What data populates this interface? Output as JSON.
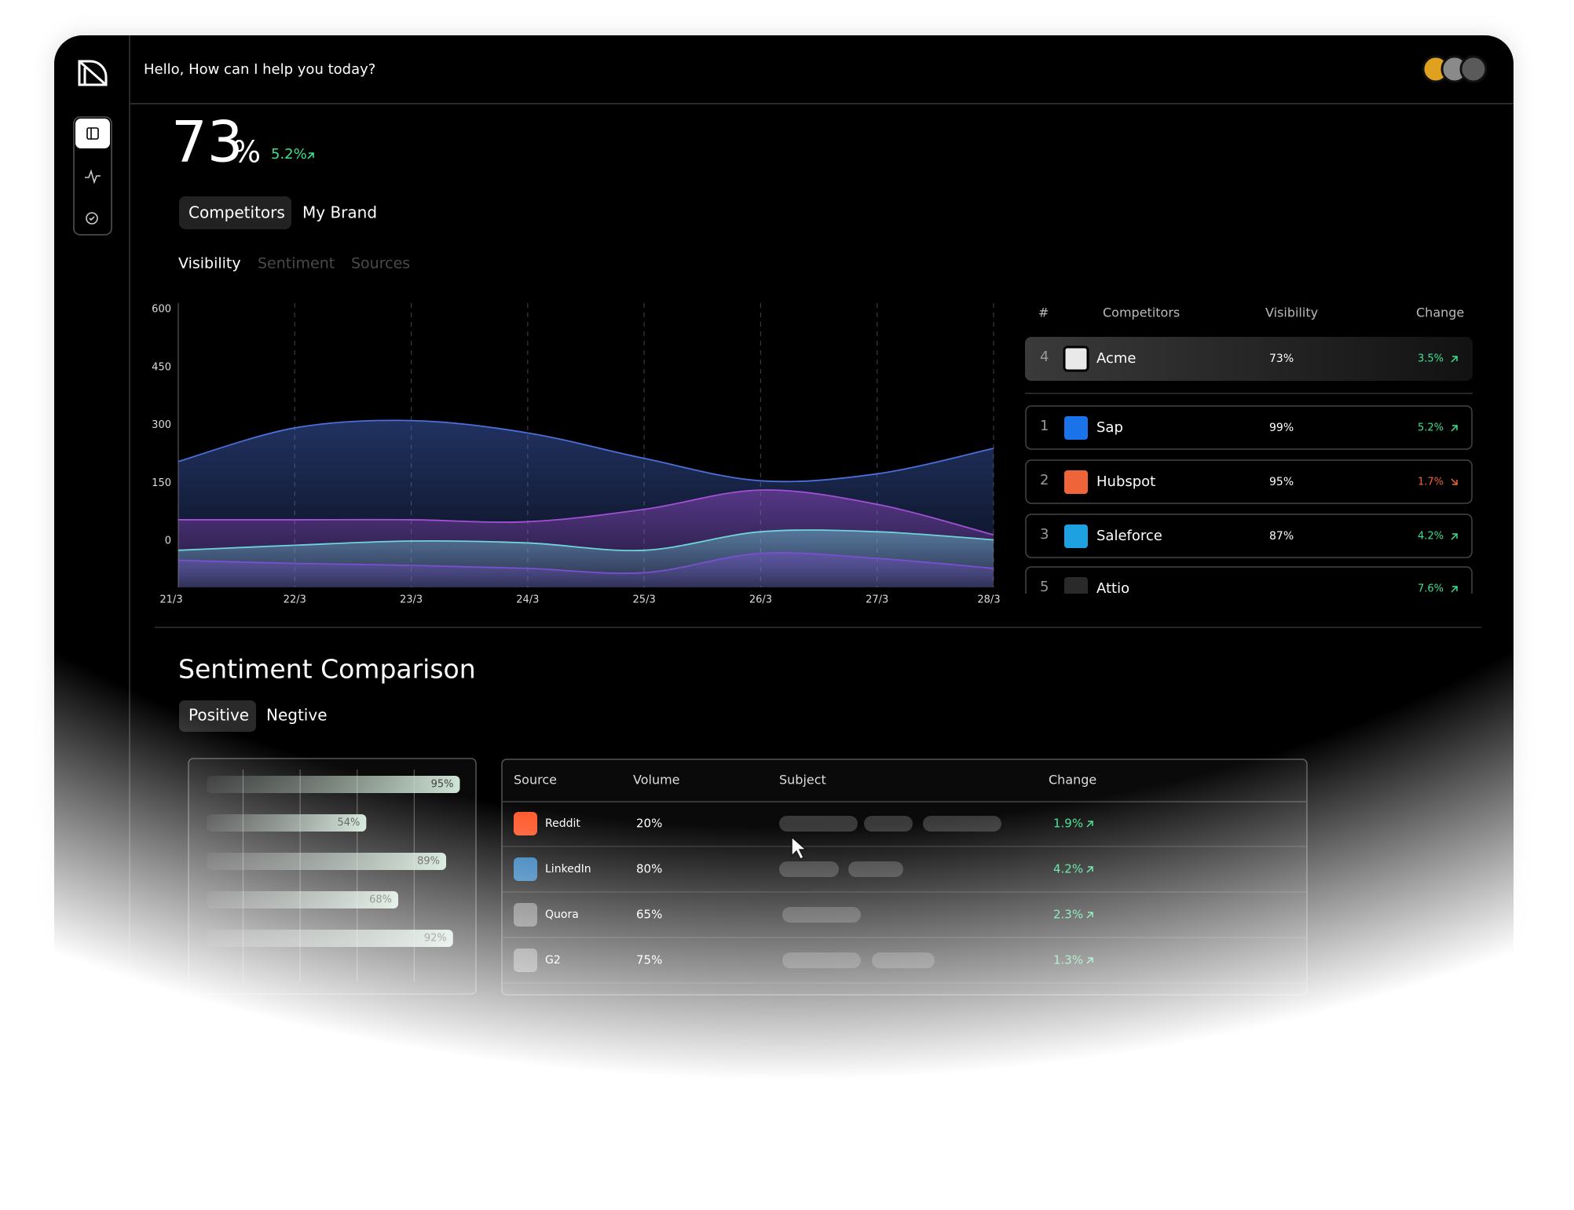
{
  "header": {
    "greeting": "Hello, How can I help you today?"
  },
  "kpi": {
    "value": 73,
    "unit": "%",
    "change": "5.2%"
  },
  "tabs": [
    "Competitors",
    "My Brand"
  ],
  "subtabs": [
    "Visibility",
    "Sentiment",
    "Sources"
  ],
  "chart_data": {
    "type": "area",
    "categories": [
      "21/3",
      "22/3",
      "23/3",
      "24/3",
      "25/3",
      "26/3",
      "27/3",
      "28/3"
    ],
    "series": [
      {
        "color": "#4a6fd8",
        "values": [
          206,
          293,
          312,
          280,
          214,
          156,
          174,
          240
        ]
      },
      {
        "color": "#a24fd6",
        "values": [
          55,
          55,
          55,
          50,
          82,
          132,
          95,
          16
        ]
      },
      {
        "color": "#6fd3d8",
        "values": [
          -24,
          -11,
          0,
          -5,
          -24,
          24,
          24,
          3
        ]
      },
      {
        "color": "#7a4fd0",
        "values": [
          -50,
          -58,
          -63,
          -71,
          -82,
          -32,
          -45,
          -71
        ]
      }
    ],
    "ylim": [
      -120,
      600
    ],
    "yticks": [
      0,
      150,
      300,
      450,
      600
    ],
    "grid": true
  },
  "competitors": {
    "columns": [
      "#",
      "Competitors",
      "Visibility",
      "Change"
    ],
    "rows": [
      {
        "rank": 4,
        "name": "Acme",
        "visibility": "73%",
        "change": "3.5%",
        "trend": "up",
        "color": "#e9e9e9"
      },
      {
        "rank": 1,
        "name": "Sap",
        "visibility": "99%",
        "change": "5.2%",
        "trend": "up",
        "color": "#1a73e8"
      },
      {
        "rank": 2,
        "name": "Hubspot",
        "visibility": "95%",
        "change": "1.7%",
        "trend": "down",
        "color": "#f0643a"
      },
      {
        "rank": 3,
        "name": "Saleforce",
        "visibility": "87%",
        "change": "4.2%",
        "trend": "up",
        "color": "#1ea1e0"
      },
      {
        "rank": 5,
        "name": "Attio",
        "visibility": "",
        "change": "7.6%",
        "trend": "up",
        "color": "#2a2a2a"
      }
    ]
  },
  "sentiment": {
    "title": "Sentiment Comparison",
    "tabs": [
      "Positive",
      "Negtive"
    ],
    "bars": {
      "values": [
        95,
        54,
        89,
        68,
        92
      ],
      "value_labels": [
        "95%",
        "54%",
        "89%",
        "68%",
        "92%"
      ],
      "xlim": [
        -16,
        100
      ],
      "xticks": [
        0,
        25,
        50,
        75
      ],
      "color": "#cfe5d6"
    },
    "sources": {
      "columns": [
        "Source",
        "Volume",
        "Subject",
        "Change"
      ],
      "rows": [
        {
          "name": "Reddit",
          "volume": "20%",
          "change": "1.9%",
          "color": "#ff5a2c"
        },
        {
          "name": "LinkedIn",
          "volume": "80%",
          "change": "4.2%",
          "color": "#2a78b8"
        },
        {
          "name": "Quora",
          "volume": "65%",
          "change": "2.3%",
          "color": "#666666"
        },
        {
          "name": "G2",
          "volume": "75%",
          "change": "1.3%",
          "color": "#666666"
        }
      ]
    }
  }
}
